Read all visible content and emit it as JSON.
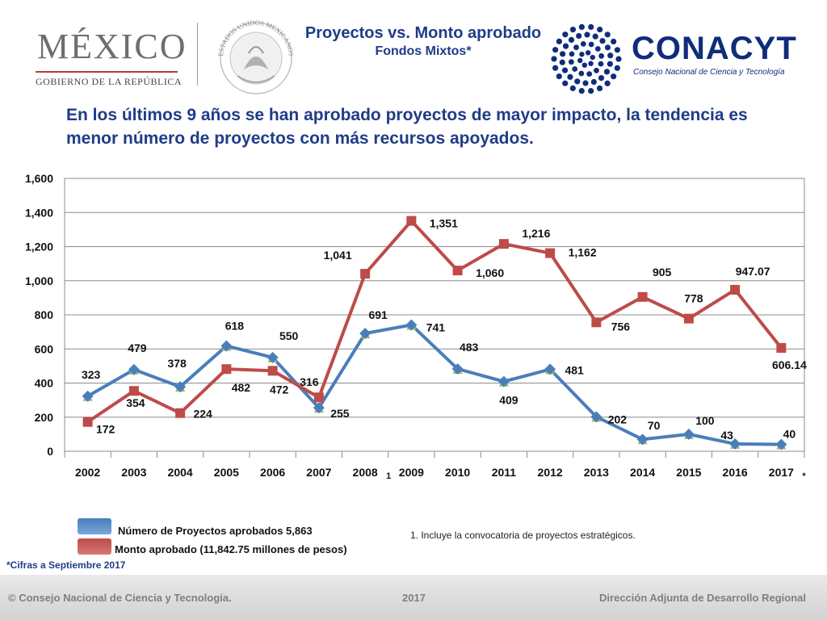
{
  "header": {
    "mexico_logo": "MÉXICO",
    "mexico_subtitle": "GOBIERNO DE LA REPÚBLICA",
    "seal_text": "ESTADOS UNIDOS MEXICANOS",
    "title": "Proyectos vs. Monto aprobado",
    "subtitle": "Fondos Mixtos*",
    "conacyt_logo": "CONACYT",
    "conacyt_subtitle": "Consejo Nacional de Ciencia y Tecnología"
  },
  "headline": "En los últimos 9 años se han aprobado proyectos de mayor impacto, la tendencia es menor número de proyectos con más recursos apoyados.",
  "colors": {
    "proyectos": "#4a7ebb",
    "monto": "#be4b48",
    "marker_green": "#9bbb59",
    "title_blue": "#1f3c88"
  },
  "chart_data": {
    "type": "line",
    "categories": [
      "2002",
      "2003",
      "2004",
      "2005",
      "2006",
      "2007",
      "2008",
      "2009",
      "2010",
      "2011",
      "2012",
      "2013",
      "2014",
      "2015",
      "2016",
      "2017"
    ],
    "category_marks": {
      "2008": "1",
      "2017": "*"
    },
    "ylim": [
      0,
      1600
    ],
    "yticks": [
      "0",
      "200",
      "400",
      "600",
      "800",
      "1,000",
      "1,200",
      "1,400",
      "1,600"
    ],
    "grid": true,
    "series": [
      {
        "name": "Número de Proyectos aprobados 5,863",
        "values": [
          323,
          479,
          378,
          618,
          550,
          255,
          691,
          741,
          483,
          409,
          481,
          202,
          70,
          100,
          43,
          40
        ],
        "labels": [
          "323",
          "479",
          "378",
          "618",
          "550",
          "255",
          "691",
          "741",
          "483",
          "409",
          "481",
          "202",
          "70",
          "100",
          "43",
          "40"
        ]
      },
      {
        "name": "Monto aprobado (11,842.75 millones de pesos)",
        "values": [
          172,
          354,
          224,
          482,
          472,
          316,
          1041,
          1351,
          1060,
          1216,
          1162,
          756,
          905,
          778,
          947.07,
          606.14
        ],
        "labels": [
          "172",
          "354",
          "224",
          "482",
          "472",
          "316",
          "1,041",
          "1,351",
          "1,060",
          "1,216",
          "1,162",
          "756",
          "905",
          "778",
          "947.07",
          "606.14"
        ]
      }
    ]
  },
  "notes": {
    "footnote": "1. Incluye la convocatoria de proyectos estratégicos.",
    "cifras": "*Cifras a Septiembre 2017"
  },
  "footer": {
    "left": "© Consejo Nacional de Ciencia y Tecnología.",
    "center": "2017",
    "right": "Dirección Adjunta de Desarrollo Regional"
  }
}
